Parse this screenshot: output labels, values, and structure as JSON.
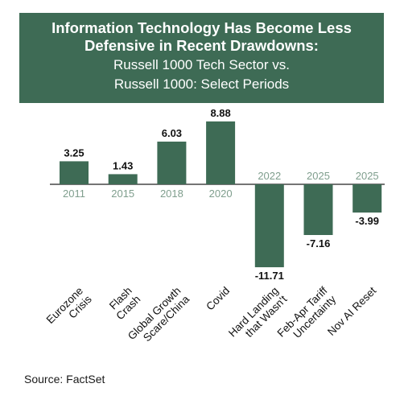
{
  "header": {
    "title_line1": "Information Technology Has Become Less",
    "title_line2": "Defensive in Recent Drawdowns:",
    "subtitle_line1": "Russell 1000 Tech Sector vs.",
    "subtitle_line2": "Russell 1000: Select Periods"
  },
  "source": "Source: FactSet",
  "colors": {
    "bar": "#3e6b55",
    "banner": "#3e6b55",
    "year_label": "#7f9e8d"
  },
  "chart_data": {
    "type": "bar",
    "title": "Information Technology Has Become Less Defensive in Recent Drawdowns: Russell 1000 Tech Sector vs. Russell 1000: Select Periods",
    "categories": [
      [
        "Eurozone",
        "Crisis"
      ],
      [
        "Flash",
        "Crash"
      ],
      [
        "Global Growth",
        "Scare/China"
      ],
      [
        "Covid"
      ],
      [
        "Hard Landing",
        "that Wasn't"
      ],
      [
        "Feb-Apr Tariff",
        "Uncertainty"
      ],
      [
        "Nov AI Reset"
      ]
    ],
    "years": [
      "2011",
      "2015",
      "2018",
      "2020",
      "2022",
      "2025",
      "2025"
    ],
    "values": [
      3.25,
      1.43,
      6.03,
      8.88,
      -11.71,
      -7.16,
      -3.99
    ],
    "value_labels": [
      "3.25",
      "1.43",
      "6.03",
      "8.88",
      "-11.71",
      "-7.16",
      "-3.99"
    ],
    "ylim": [
      -11.71,
      8.88
    ],
    "grid": false,
    "legend": "none"
  }
}
